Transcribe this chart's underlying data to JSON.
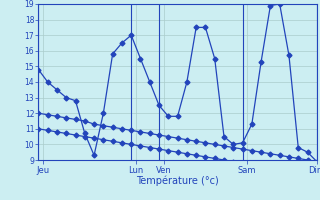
{
  "xlabel": "Température (°c)",
  "bg_color": "#cceef2",
  "line_color": "#2244bb",
  "grid_color": "#aacccc",
  "ylim": [
    9,
    19
  ],
  "yticks": [
    9,
    10,
    11,
    12,
    13,
    14,
    15,
    16,
    17,
    18,
    19
  ],
  "xlim": [
    0,
    30
  ],
  "xtick_positions": [
    0.5,
    10.5,
    13.5,
    22.5,
    30
  ],
  "xtick_labels": [
    "Jeu",
    "Lun",
    "Ven",
    "Sam",
    "Dim"
  ],
  "vline_positions": [
    0,
    10,
    13,
    22,
    30
  ],
  "line1_x": [
    0,
    1,
    2,
    3,
    4,
    5,
    6,
    7,
    8,
    9,
    10,
    11,
    12,
    13,
    14,
    15,
    16,
    17,
    18,
    19,
    20,
    21,
    22,
    23,
    24,
    25,
    26,
    27,
    28,
    29,
    30
  ],
  "line1_y": [
    14.8,
    14.0,
    13.5,
    13.0,
    12.8,
    10.7,
    9.3,
    12.0,
    15.8,
    16.5,
    17.0,
    15.5,
    14.0,
    12.5,
    11.8,
    11.8,
    14.0,
    17.5,
    17.5,
    15.5,
    10.5,
    10.0,
    10.1,
    11.3,
    15.3,
    18.9,
    19.0,
    15.7,
    9.8,
    9.5,
    8.9
  ],
  "line2_x": [
    0,
    1,
    2,
    3,
    4,
    5,
    6,
    7,
    8,
    9,
    10,
    11,
    12,
    13,
    14,
    15,
    16,
    17,
    18,
    19,
    20,
    21,
    22,
    23,
    24,
    25,
    26,
    27,
    28,
    29,
    30
  ],
  "line2_y": [
    12.0,
    11.9,
    11.8,
    11.7,
    11.6,
    11.5,
    11.3,
    11.2,
    11.1,
    11.0,
    10.9,
    10.8,
    10.7,
    10.6,
    10.5,
    10.4,
    10.3,
    10.2,
    10.1,
    10.0,
    9.9,
    9.8,
    9.7,
    9.6,
    9.5,
    9.4,
    9.3,
    9.2,
    9.1,
    9.0,
    8.9
  ],
  "line3_x": [
    0,
    1,
    2,
    3,
    4,
    5,
    6,
    7,
    8,
    9,
    10,
    11,
    12,
    13,
    14,
    15,
    16,
    17,
    18,
    19,
    20,
    21,
    22,
    23,
    24,
    25,
    26,
    27,
    28,
    29,
    30
  ],
  "line3_y": [
    11.0,
    10.9,
    10.8,
    10.7,
    10.6,
    10.5,
    10.4,
    10.3,
    10.2,
    10.1,
    10.0,
    9.9,
    9.8,
    9.7,
    9.6,
    9.5,
    9.4,
    9.3,
    9.2,
    9.1,
    9.0,
    8.9,
    8.8,
    8.7,
    8.6,
    8.5,
    8.4,
    8.3,
    8.2,
    8.1,
    8.0
  ],
  "marker": "D",
  "markersize": 2.5,
  "linewidth": 0.9
}
